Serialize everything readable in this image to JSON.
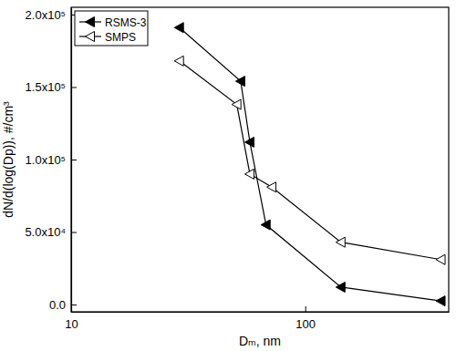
{
  "chart_data": {
    "type": "line",
    "x_label": "Dₘ, nm",
    "y_label": "dN/d(log(Dp)), #/cm³",
    "log": "x",
    "legend": "upper-left",
    "xlim": [
      10,
      410
    ],
    "xticks": [
      10,
      100
    ],
    "ylim": [
      -5000,
      205000
    ],
    "yticks": [
      {
        "value": 0,
        "label": "0.0"
      },
      {
        "value": 50000,
        "label": "5.0x10⁴"
      },
      {
        "value": 100000,
        "label": "1.0x10⁵"
      },
      {
        "value": 150000,
        "label": "1.5x10⁵"
      },
      {
        "value": 200000,
        "label": "2.0x10⁵"
      }
    ],
    "series": [
      {
        "name": "RSMS-3",
        "color": "#000000",
        "marker": "filled-triangle-left",
        "x": [
          29,
          53,
          58,
          68,
          142,
          380
        ],
        "values": [
          191000,
          154000,
          112000,
          55000,
          12000,
          2500
        ]
      },
      {
        "name": "SMPS",
        "color": "#000000",
        "marker": "open-triangle-left",
        "x": [
          29,
          51,
          58,
          72,
          142,
          380
        ],
        "values": [
          168000,
          138000,
          90000,
          81000,
          43000,
          31000
        ]
      }
    ]
  }
}
